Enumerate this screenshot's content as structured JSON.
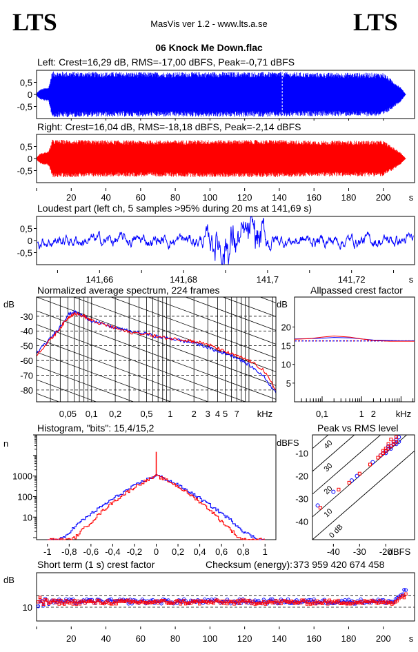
{
  "header": {
    "logo_left": "LTS",
    "logo_right": "LTS",
    "app_title": "MasVis ver 1.2 - www.lts.a.se",
    "file_name": "06 Knock Me Down.flac"
  },
  "colors": {
    "left": "#0000ff",
    "right": "#ff0000",
    "frame": "#000000"
  },
  "chart_data": [
    {
      "type": "area",
      "id": "left-waveform",
      "title": "Left: Crest=16,29 dB, RMS=-17,00 dBFS, Peak=-0,71 dBFS",
      "y_ticks": [
        "0,5",
        "0",
        "-0,5"
      ],
      "ylim": [
        -1,
        1
      ],
      "xlim": [
        0,
        218
      ],
      "envelope": [
        [
          0,
          0.05
        ],
        [
          2,
          0.2
        ],
        [
          4,
          0.25
        ],
        [
          7,
          0.3
        ],
        [
          9,
          0.95
        ],
        [
          30,
          0.93
        ],
        [
          60,
          0.92
        ],
        [
          100,
          0.93
        ],
        [
          140,
          0.93
        ],
        [
          160,
          0.9
        ],
        [
          190,
          0.9
        ],
        [
          200,
          0.9
        ],
        [
          205,
          0.6
        ],
        [
          210,
          0.3
        ],
        [
          212,
          0.1
        ],
        [
          213,
          0.0
        ]
      ],
      "marker_x": 141.69
    },
    {
      "type": "area",
      "id": "right-waveform",
      "title": "Right: Crest=16,04 dB, RMS=-18,18 dBFS, Peak=-2,14 dBFS",
      "y_ticks": [
        "0,5",
        "0",
        "-0,5"
      ],
      "ylim": [
        -1,
        1
      ],
      "xlim": [
        0,
        218
      ],
      "envelope": [
        [
          0,
          0.05
        ],
        [
          2,
          0.2
        ],
        [
          4,
          0.25
        ],
        [
          7,
          0.3
        ],
        [
          9,
          0.78
        ],
        [
          30,
          0.76
        ],
        [
          60,
          0.75
        ],
        [
          100,
          0.77
        ],
        [
          140,
          0.77
        ],
        [
          160,
          0.74
        ],
        [
          190,
          0.74
        ],
        [
          200,
          0.74
        ],
        [
          205,
          0.5
        ],
        [
          210,
          0.25
        ],
        [
          212,
          0.08
        ],
        [
          213,
          0.0
        ]
      ],
      "x_ticks": [
        "20",
        "40",
        "60",
        "80",
        "100",
        "120",
        "140",
        "160",
        "180",
        "200"
      ],
      "x_tick_values": [
        20,
        40,
        60,
        80,
        100,
        120,
        140,
        160,
        180,
        200
      ],
      "x_unit": "s"
    },
    {
      "type": "line",
      "id": "loudest-part",
      "title": "Loudest part (left  ch, 5 samples >95% during 20 ms at 141,69 s)",
      "y_ticks": [
        "0,5",
        "0",
        "-0,5"
      ],
      "ylim": [
        -1,
        1
      ],
      "xlim": [
        141.645,
        141.735
      ],
      "x_ticks": [
        "141,66",
        "141,68",
        "141,7",
        "141,72"
      ],
      "x_tick_values": [
        141.66,
        141.68,
        141.7,
        141.72
      ],
      "x_unit": "s"
    },
    {
      "type": "line",
      "id": "spectrum",
      "title": "Normalized average spectrum, 224 frames",
      "ylabel": "dB",
      "y_ticks": [
        "-30",
        "-40",
        "-50",
        "-60",
        "-70",
        "-80"
      ],
      "y_tick_values": [
        -30,
        -40,
        -50,
        -60,
        -70,
        -80
      ],
      "ylim": [
        -88,
        -17
      ],
      "x_ticks": [
        "0,05",
        "0,1",
        "0,2",
        "0,5",
        "1",
        "2",
        "3",
        "4",
        "5",
        "7"
      ],
      "x_tick_values": [
        0.05,
        0.1,
        0.2,
        0.5,
        1,
        2,
        3,
        4,
        5,
        7
      ],
      "x_unit": "kHz",
      "xlim": [
        0.02,
        22
      ],
      "x_scale": "log",
      "series": [
        {
          "color": "#0000ff",
          "x": [
            0.02,
            0.03,
            0.04,
            0.05,
            0.06,
            0.08,
            0.1,
            0.15,
            0.2,
            0.3,
            0.5,
            0.7,
            1,
            1.5,
            2,
            3,
            4,
            5,
            7,
            10,
            15,
            22
          ],
          "y": [
            -55,
            -45,
            -37,
            -29,
            -27,
            -30,
            -33,
            -36,
            -38,
            -40,
            -42,
            -44,
            -45,
            -47,
            -48,
            -51,
            -54,
            -55,
            -58,
            -63,
            -70,
            -82
          ]
        },
        {
          "color": "#ff0000",
          "x": [
            0.02,
            0.03,
            0.04,
            0.05,
            0.06,
            0.08,
            0.1,
            0.15,
            0.2,
            0.3,
            0.5,
            0.7,
            1,
            1.5,
            2,
            3,
            4,
            5,
            7,
            10,
            15,
            22
          ],
          "y": [
            -56,
            -46,
            -38,
            -31,
            -28,
            -30,
            -33,
            -36,
            -38,
            -41,
            -42,
            -44,
            -45,
            -46,
            -47,
            -49,
            -52,
            -54,
            -57,
            -60,
            -66,
            -80
          ]
        }
      ]
    },
    {
      "type": "line",
      "id": "allpassed-crest",
      "title": "Allpassed crest factor",
      "ylabel": "dB",
      "y_ticks": [
        "20",
        "15",
        "10",
        "5"
      ],
      "y_tick_values": [
        20,
        15,
        10,
        5
      ],
      "ylim": [
        0,
        28
      ],
      "x_ticks": [
        "0,1",
        "1",
        "2"
      ],
      "x_tick_values": [
        0.1,
        1,
        2
      ],
      "x_unit": "kHz",
      "xlim": [
        0.02,
        22
      ],
      "x_scale": "log",
      "reference_db": 16.29,
      "series": [
        {
          "color": "#0000ff",
          "x": [
            0.02,
            0.05,
            0.1,
            0.2,
            0.5,
            1,
            2,
            5,
            10,
            22
          ],
          "y": [
            16.8,
            16.9,
            17.0,
            17.2,
            17.1,
            16.8,
            16.5,
            16.4,
            16.3,
            16.3
          ]
        },
        {
          "color": "#ff0000",
          "x": [
            0.02,
            0.05,
            0.1,
            0.2,
            0.5,
            1,
            2,
            5,
            10,
            22
          ],
          "y": [
            16.7,
            16.9,
            17.3,
            17.6,
            17.3,
            16.8,
            16.4,
            16.2,
            16.2,
            16.2
          ]
        }
      ]
    },
    {
      "type": "line",
      "id": "histogram",
      "title": "Histogram, \"bits\": 15,4/15,2",
      "ylabel": "n",
      "y_ticks": [
        "1000",
        "100",
        "10"
      ],
      "y_tick_values": [
        1000,
        100,
        10
      ],
      "y_scale": "log",
      "ylim": [
        0.8,
        100000
      ],
      "x_ticks": [
        "-1",
        "-0,8",
        "-0,6",
        "-0,4",
        "-0,2",
        "0",
        "0,2",
        "0,4",
        "0,6",
        "0,8",
        "1"
      ],
      "x_tick_values": [
        -1,
        -0.8,
        -0.6,
        -0.4,
        -0.2,
        0,
        0.2,
        0.4,
        0.6,
        0.8,
        1
      ],
      "xlim": [
        -1.1,
        1.1
      ],
      "series": [
        {
          "color": "#0000ff",
          "x": [
            -1,
            -0.9,
            -0.85,
            -0.8,
            -0.7,
            -0.6,
            -0.5,
            -0.4,
            -0.3,
            -0.2,
            -0.1,
            0,
            0.1,
            0.2,
            0.3,
            0.4,
            0.5,
            0.6,
            0.7,
            0.8,
            0.9,
            0.95,
            1
          ],
          "y": [
            0.8,
            0.8,
            1,
            2,
            6,
            15,
            35,
            80,
            170,
            350,
            650,
            1100,
            650,
            350,
            170,
            80,
            35,
            15,
            6,
            2,
            1,
            0.8,
            0.8
          ]
        },
        {
          "color": "#ff0000",
          "x": [
            -1,
            -0.8,
            -0.75,
            -0.7,
            -0.6,
            -0.5,
            -0.4,
            -0.3,
            -0.2,
            -0.1,
            0,
            0.1,
            0.2,
            0.3,
            0.4,
            0.5,
            0.6,
            0.7,
            0.75,
            0.8,
            1
          ],
          "y": [
            0.8,
            0.8,
            1,
            2,
            6,
            20,
            55,
            130,
            300,
            600,
            1000,
            600,
            300,
            130,
            55,
            20,
            6,
            2,
            1,
            0.8,
            0.8
          ]
        }
      ],
      "spike": {
        "x": 0,
        "y": 15000,
        "color": "#ff0000"
      }
    },
    {
      "type": "scatter",
      "id": "peak-vs-rms",
      "title": "Peak vs RMS level",
      "ylabel": "dBFS",
      "xlabel": "dBFS",
      "y_ticks": [
        "-10",
        "-20",
        "-30",
        "-40"
      ],
      "y_tick_values": [
        -10,
        -20,
        -30,
        -40
      ],
      "x_ticks": [
        "-40",
        "-30",
        "-20"
      ],
      "x_tick_values": [
        -40,
        -30,
        -20
      ],
      "xlim": [
        -48,
        -9
      ],
      "ylim": [
        -48,
        -2
      ],
      "diagonal_labels": [
        "40",
        "30",
        "20",
        "10",
        "0 dB"
      ],
      "diagonal_values": [
        40,
        30,
        20,
        10,
        0
      ],
      "series": [
        {
          "color": "#0000ff",
          "x": [
            -46,
            -40,
            -33,
            -31,
            -25,
            -22,
            -21,
            -20,
            -19,
            -18,
            -17,
            -16,
            -15,
            -17,
            -18,
            -16,
            -15,
            -19,
            -20
          ],
          "y": [
            -33,
            -27,
            -22,
            -20,
            -14,
            -11,
            -10,
            -9,
            -8,
            -7,
            -6,
            -4,
            -3,
            -5,
            -8,
            -6,
            -5,
            -7,
            -10
          ]
        },
        {
          "color": "#ff0000",
          "x": [
            -45,
            -38,
            -34,
            -30,
            -26,
            -23,
            -22,
            -21,
            -20,
            -19,
            -18,
            -17,
            -16,
            -18,
            -17,
            -16,
            -19,
            -20,
            -21
          ],
          "y": [
            -34,
            -26,
            -23,
            -19,
            -15,
            -12,
            -11,
            -10,
            -9,
            -8,
            -7,
            -6,
            -5,
            -4,
            -5,
            -3,
            -6,
            -8,
            -9
          ]
        }
      ]
    },
    {
      "type": "scatter",
      "id": "short-term-crest",
      "title": "Short term (1 s) crest factor",
      "ylabel": "dB",
      "y_ticks": [
        "10"
      ],
      "y_tick_values": [
        10
      ],
      "ylim": [
        4,
        25
      ],
      "xlim": [
        0,
        218
      ],
      "x_ticks": [
        "20",
        "40",
        "60",
        "80",
        "100",
        "120",
        "140",
        "160",
        "180",
        "200"
      ],
      "x_tick_values": [
        20,
        40,
        60,
        80,
        100,
        120,
        140,
        160,
        180,
        200
      ],
      "x_unit": "s",
      "dashed_levels": [
        10,
        15
      ],
      "series": [
        {
          "color": "#0000ff",
          "mean": 12.5,
          "spread": 1.0
        },
        {
          "color": "#ff0000",
          "mean": 12.2,
          "spread": 0.9
        }
      ]
    }
  ],
  "checksum": {
    "label": "Checksum (energy):",
    "value": "373 959 420 674 458"
  }
}
